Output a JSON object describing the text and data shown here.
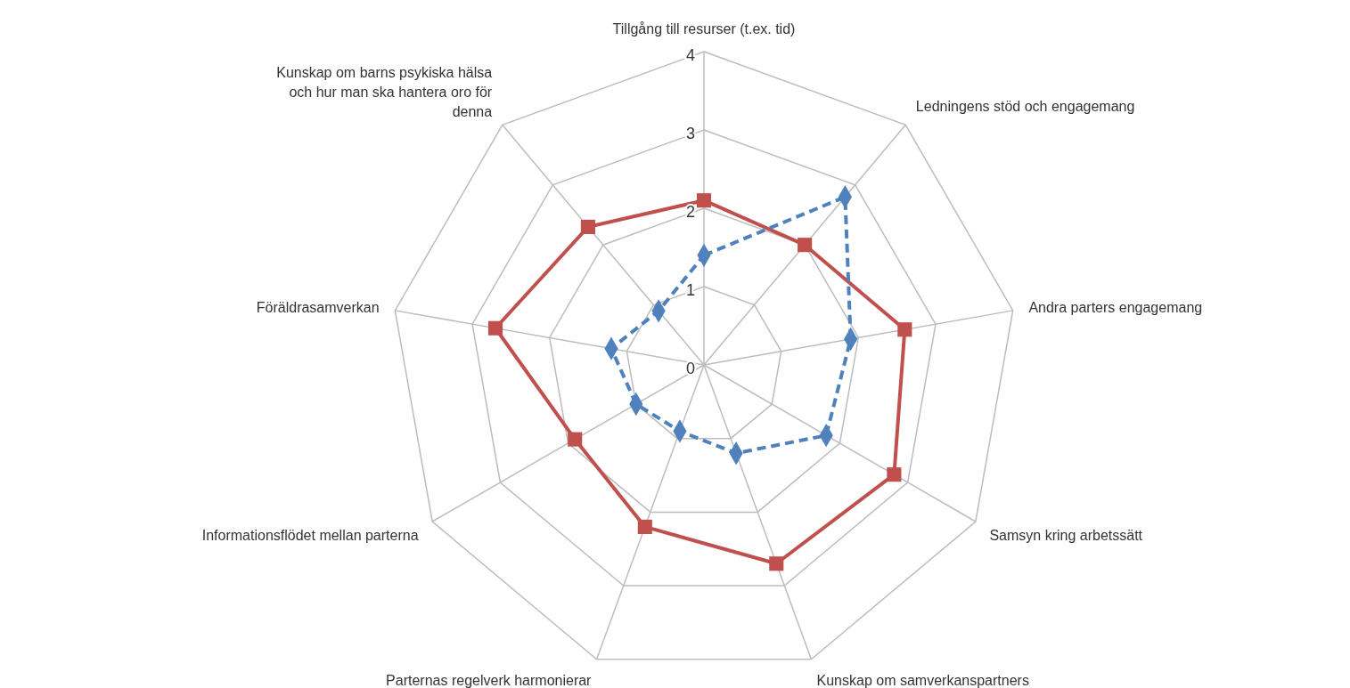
{
  "chart_data": {
    "type": "radar",
    "categories": [
      "Tillgång till resurser (t.ex. tid)",
      "Ledningens stöd och engagemang",
      "Andra parters engagemang",
      "Samsyn kring arbetssätt",
      "Kunskap om samverkanspartners",
      "Parternas regelverk harmonierar",
      "Informationsflödet mellan parterna",
      "Föräldrasamverkan",
      "Kunskap om barns psykiska hälsa och hur man ska hantera oro för denna"
    ],
    "series": [
      {
        "color": "#c0504d",
        "marker": "square",
        "line_style": "solid",
        "values": [
          2.1,
          2.0,
          2.6,
          2.8,
          2.7,
          2.2,
          1.9,
          2.7,
          2.3
        ]
      },
      {
        "color": "#4f81bd",
        "marker": "diamond",
        "line_style": "dashed",
        "values": [
          1.4,
          2.8,
          1.9,
          1.8,
          1.2,
          0.9,
          1.0,
          1.2,
          0.9
        ]
      }
    ],
    "ylim": [
      0,
      4
    ],
    "yticks": [
      0,
      1,
      2,
      3,
      4
    ],
    "grid": true
  }
}
